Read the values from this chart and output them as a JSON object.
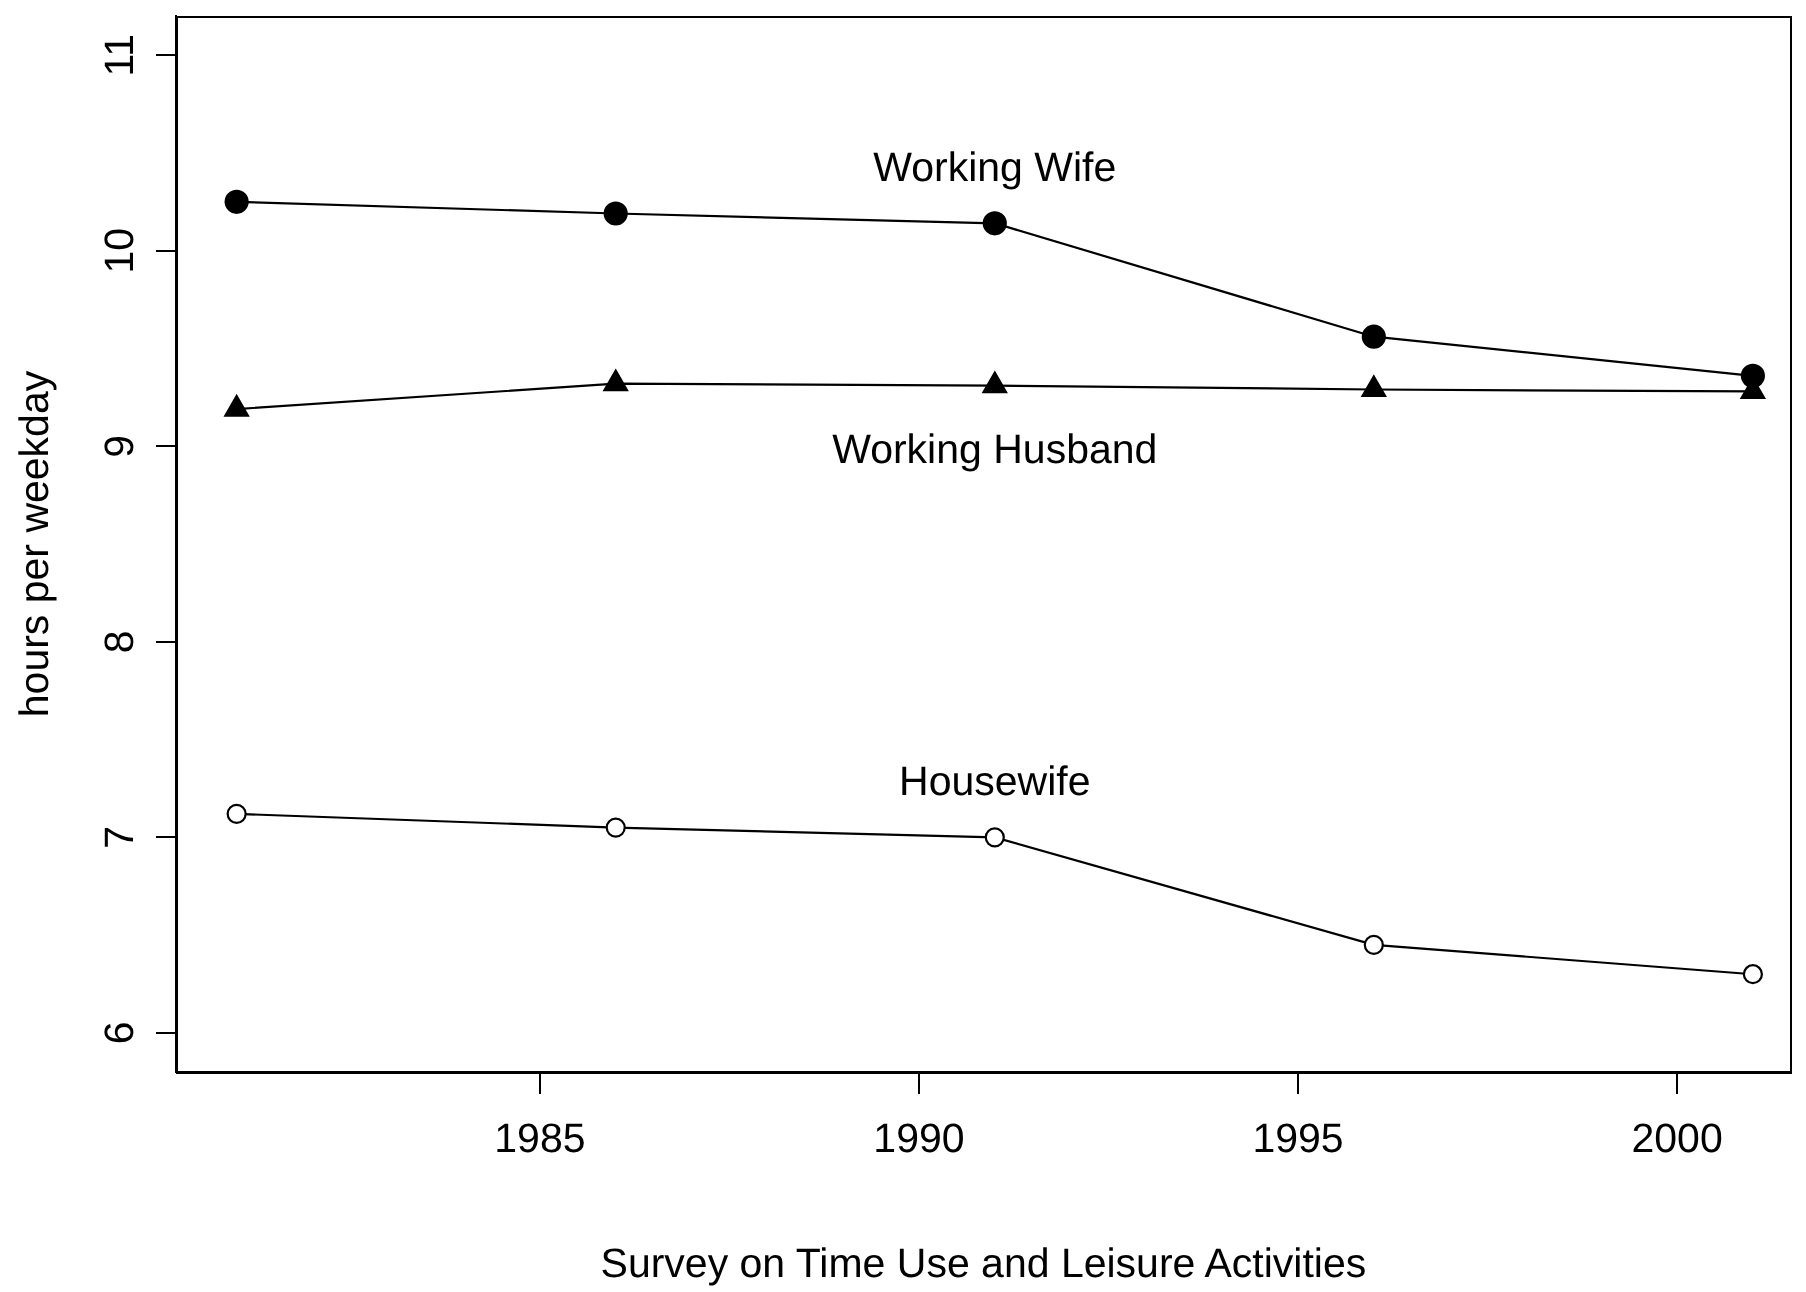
{
  "chart_data": {
    "type": "line",
    "xlabel": "Survey on Time Use and Leisure Activities",
    "ylabel": "hours per weekday",
    "x": [
      1981,
      1986,
      1991,
      1996,
      2001
    ],
    "series": [
      {
        "name": "Working Wife",
        "color": "#000000",
        "marker": "circle",
        "values": [
          10.25,
          10.19,
          10.14,
          9.56,
          9.36
        ]
      },
      {
        "name": "Working Husband",
        "color": "#000000",
        "marker": "triangle",
        "values": [
          9.19,
          9.32,
          9.31,
          9.29,
          9.28
        ]
      },
      {
        "name": "Housewife",
        "color": "#000000",
        "marker": "circle",
        "values": [
          7.12,
          7.05,
          7.0,
          6.45,
          6.3
        ]
      }
    ],
    "xlim": [
      1980.2,
      2001.5
    ],
    "ylim": [
      5.8,
      11.2
    ],
    "xticks": [
      1985,
      1990,
      1995,
      2000
    ],
    "yticks": [
      6,
      7,
      8,
      9,
      10,
      11
    ],
    "line_style": "solid"
  }
}
